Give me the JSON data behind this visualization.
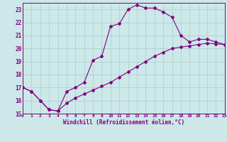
{
  "xlabel": "Windchill (Refroidissement éolien,°C)",
  "xlim": [
    0,
    23
  ],
  "ylim": [
    15,
    23.5
  ],
  "yticks": [
    15,
    16,
    17,
    18,
    19,
    20,
    21,
    22,
    23
  ],
  "xticks": [
    0,
    1,
    2,
    3,
    4,
    5,
    6,
    7,
    8,
    9,
    10,
    11,
    12,
    13,
    14,
    15,
    16,
    17,
    18,
    19,
    20,
    21,
    22,
    23
  ],
  "bg_color": "#cce8e8",
  "grid_color": "#aacccc",
  "line_color": "#800080",
  "line1_x": [
    0,
    1,
    2,
    3,
    4,
    5,
    6,
    7,
    8,
    9,
    10,
    11,
    12,
    13,
    14,
    15,
    16,
    17,
    18,
    19,
    20,
    21,
    22,
    23
  ],
  "line1_y": [
    17.0,
    16.7,
    16.0,
    15.3,
    15.2,
    16.7,
    17.0,
    17.4,
    19.1,
    19.4,
    21.7,
    21.9,
    23.0,
    23.35,
    23.1,
    23.1,
    22.8,
    22.4,
    21.0,
    20.5,
    20.7,
    20.7,
    20.5,
    20.3
  ],
  "line2_x": [
    0,
    1,
    2,
    3,
    4,
    5,
    6,
    7,
    8,
    9,
    10,
    11,
    12,
    13,
    14,
    15,
    16,
    17,
    18,
    19,
    20,
    21,
    22,
    23
  ],
  "line2_y": [
    17.0,
    16.7,
    16.0,
    15.3,
    15.2,
    15.8,
    16.2,
    16.5,
    16.8,
    17.1,
    17.4,
    17.8,
    18.2,
    18.6,
    19.0,
    19.4,
    19.7,
    20.0,
    20.1,
    20.2,
    20.3,
    20.4,
    20.35,
    20.3
  ]
}
